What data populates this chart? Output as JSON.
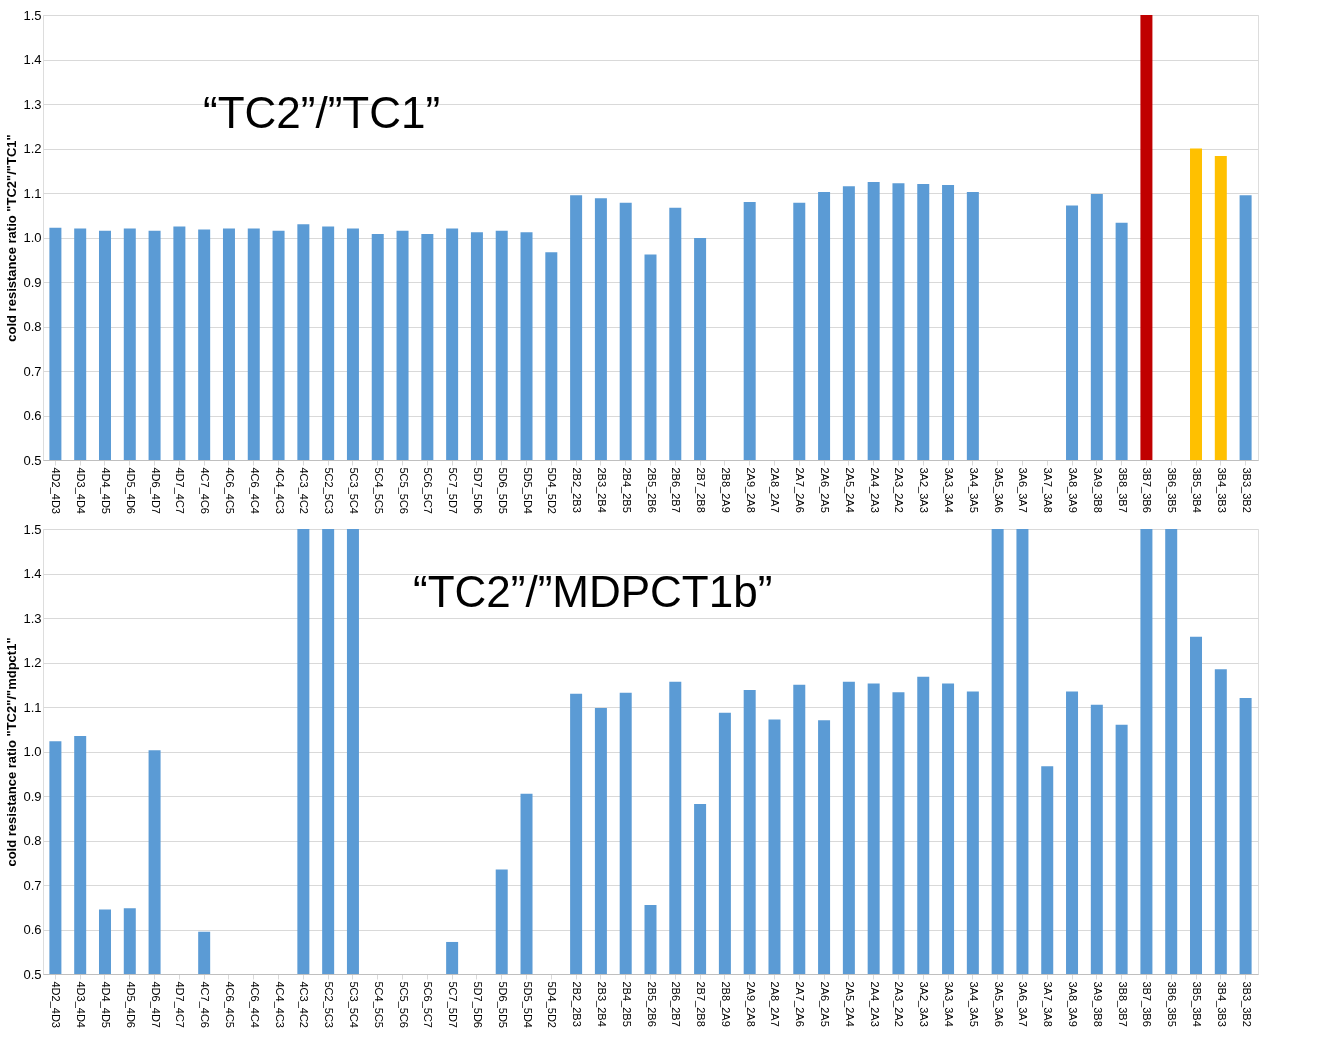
{
  "chart_data": [
    {
      "type": "bar",
      "ylabel": "cold resistance ratio \"TC2\"/\"TC1\"",
      "annotations": [
        "“TC2”/”TC1”"
      ],
      "categories": [
        "4D2_4D3",
        "4D3_4D4",
        "4D4_4D5",
        "4D5_4D6",
        "4D6_4D7",
        "4D7_4C7",
        "4C7_4C6",
        "4C6_4C5",
        "4C6_4C4",
        "4C4_4C3",
        "4C3_4C2",
        "5C2_5C3",
        "5C3_5C4",
        "5C4_5C5",
        "5C5_5C6",
        "5C6_5C7",
        "5C7_5D7",
        "5D7_5D6",
        "5D6_5D5",
        "5D5_5D4",
        "5D4_5D2",
        "2B2_2B3",
        "2B3_2B4",
        "2B4_2B5",
        "2B5_2B6",
        "2B6_2B7",
        "2B7_2B8",
        "2B8_2A9",
        "2A9_2A8",
        "2A8_2A7",
        "2A7_2A6",
        "2A6_2A5",
        "2A5_2A4",
        "2A4_2A3",
        "2A3_2A2",
        "3A2_3A3",
        "3A3_3A4",
        "3A4_3A5",
        "3A5_3A6",
        "3A6_3A7",
        "3A7_3A8",
        "3A8_3A9",
        "3A9_3B8",
        "3B8_3B7",
        "3B7_3B6",
        "3B6_3B5",
        "3B5_3B4",
        "3B4_3B3",
        "3B3_3B2"
      ],
      "values": [
        1.022,
        1.02,
        1.015,
        1.02,
        1.015,
        1.025,
        1.018,
        1.02,
        1.02,
        1.015,
        1.03,
        1.025,
        1.02,
        1.008,
        1.015,
        1.008,
        1.02,
        1.012,
        1.015,
        1.012,
        0.967,
        1.095,
        1.088,
        1.078,
        0.962,
        1.067,
        0.999,
        null,
        1.08,
        null,
        1.078,
        1.102,
        1.115,
        1.125,
        1.122,
        1.12,
        1.118,
        1.102,
        null,
        null,
        null,
        1.072,
        1.098,
        1.033,
        1.5,
        null,
        1.2,
        1.183,
        1.095
      ],
      "colors": [
        "#5b9bd5",
        "#5b9bd5",
        "#5b9bd5",
        "#5b9bd5",
        "#5b9bd5",
        "#5b9bd5",
        "#5b9bd5",
        "#5b9bd5",
        "#5b9bd5",
        "#5b9bd5",
        "#5b9bd5",
        "#5b9bd5",
        "#5b9bd5",
        "#5b9bd5",
        "#5b9bd5",
        "#5b9bd5",
        "#5b9bd5",
        "#5b9bd5",
        "#5b9bd5",
        "#5b9bd5",
        "#5b9bd5",
        "#5b9bd5",
        "#5b9bd5",
        "#5b9bd5",
        "#5b9bd5",
        "#5b9bd5",
        "#5b9bd5",
        "#5b9bd5",
        "#5b9bd5",
        "#5b9bd5",
        "#5b9bd5",
        "#5b9bd5",
        "#5b9bd5",
        "#5b9bd5",
        "#5b9bd5",
        "#5b9bd5",
        "#5b9bd5",
        "#5b9bd5",
        "#5b9bd5",
        "#5b9bd5",
        "#5b9bd5",
        "#5b9bd5",
        "#5b9bd5",
        "#5b9bd5",
        "#c00000",
        "#5b9bd5",
        "#ffc000",
        "#ffc000",
        "#5b9bd5"
      ],
      "ylim": [
        0.5,
        1.5
      ],
      "yticks": [
        {
          "value": 0.5,
          "label": "0.5"
        },
        {
          "value": 0.6,
          "label": "0.6"
        },
        {
          "value": 0.7,
          "label": "0.7"
        },
        {
          "value": 0.8,
          "label": "0.8"
        },
        {
          "value": 0.9,
          "label": "0.9"
        },
        {
          "value": 1.0,
          "label": "1.0"
        },
        {
          "value": 1.1,
          "label": "1.1"
        },
        {
          "value": 1.2,
          "label": "1.2"
        },
        {
          "value": 1.3,
          "label": "1.3"
        },
        {
          "value": 1.4,
          "label": "1.4"
        },
        {
          "value": 1.5,
          "label": "1.5"
        }
      ],
      "grid": "y"
    },
    {
      "type": "bar",
      "ylabel": "cold resistance ratio \"TC2\"/\"mdpct1\"",
      "annotations": [
        "“TC2”/”MDPCT1b”"
      ],
      "categories": [
        "4D2_4D3",
        "4D3_4D4",
        "4D4_4D5",
        "4D5_4D6",
        "4D6_4D7",
        "4D7_4C7",
        "4C7_4C6",
        "4C6_4C5",
        "4C6_4C4",
        "4C4_4C3",
        "4C3_4C2",
        "5C2_5C3",
        "5C3_5C4",
        "5C4_5C5",
        "5C5_5C6",
        "5C6_5C7",
        "5C7_5D7",
        "5D7_5D6",
        "5D6_5D5",
        "5D5_5D4",
        "5D4_5D2",
        "2B2_2B3",
        "2B3_2B4",
        "2B4_2B5",
        "2B5_2B6",
        "2B6_2B7",
        "2B7_2B8",
        "2B8_2A9",
        "2A9_2A8",
        "2A8_2A7",
        "2A7_2A6",
        "2A6_2A5",
        "2A5_2A4",
        "2A4_2A3",
        "2A3_2A2",
        "3A2_3A3",
        "3A3_3A4",
        "3A4_3A5",
        "3A5_3A6",
        "3A6_3A7",
        "3A7_3A8",
        "3A8_3A9",
        "3A9_3B8",
        "3B8_3B7",
        "3B7_3B6",
        "3B6_3B5",
        "3B5_3B4",
        "3B4_3B3",
        "3B3_3B2"
      ],
      "values": [
        1.023,
        1.035,
        0.645,
        0.648,
        1.003,
        null,
        0.595,
        null,
        null,
        null,
        1.5,
        1.5,
        1.5,
        null,
        null,
        null,
        0.572,
        null,
        0.735,
        0.905,
        null,
        1.13,
        1.098,
        1.132,
        0.655,
        1.157,
        0.882,
        1.087,
        1.138,
        1.072,
        1.15,
        1.07,
        1.157,
        1.153,
        1.133,
        1.168,
        1.153,
        1.135,
        1.5,
        1.5,
        0.967,
        1.135,
        1.105,
        1.06,
        1.5,
        1.5,
        1.258,
        1.185,
        1.12
      ],
      "color": "#5b9bd5",
      "ylim": [
        0.5,
        1.5
      ],
      "yticks": [
        {
          "value": 0.5,
          "label": "0.5"
        },
        {
          "value": 0.6,
          "label": "0.6"
        },
        {
          "value": 0.7,
          "label": "0.7"
        },
        {
          "value": 0.8,
          "label": "0.8"
        },
        {
          "value": 0.9,
          "label": "0.9"
        },
        {
          "value": 1.0,
          "label": "1.0"
        },
        {
          "value": 1.1,
          "label": "1.1"
        },
        {
          "value": 1.2,
          "label": "1.2"
        },
        {
          "value": 1.3,
          "label": "1.3"
        },
        {
          "value": 1.4,
          "label": "1.4"
        },
        {
          "value": 1.5,
          "label": "1.5"
        }
      ],
      "grid": "y"
    }
  ]
}
